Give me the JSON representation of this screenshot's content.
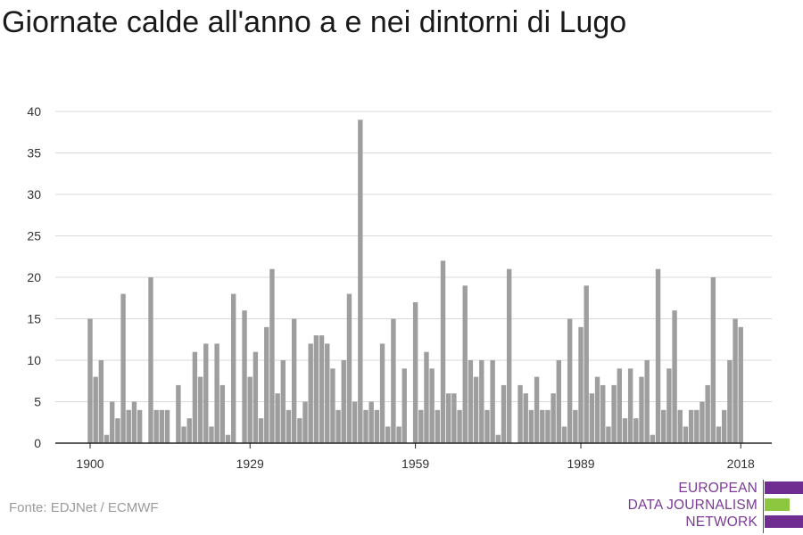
{
  "title": "Giornate calde all'anno a e nei dintorni di Lugo",
  "source": "Fonte: EDJNet / ECMWF",
  "logo": {
    "lines": [
      "EUROPEAN",
      "DATA JOURNALISM",
      "NETWORK"
    ],
    "colors": {
      "purple": "#6f2c91",
      "green": "#8dc63f"
    }
  },
  "chart_data": {
    "type": "bar",
    "x": [
      1900,
      1901,
      1902,
      1903,
      1904,
      1905,
      1906,
      1907,
      1908,
      1909,
      1910,
      1911,
      1912,
      1913,
      1914,
      1915,
      1916,
      1917,
      1918,
      1919,
      1920,
      1921,
      1922,
      1923,
      1924,
      1925,
      1926,
      1927,
      1928,
      1929,
      1930,
      1931,
      1932,
      1933,
      1934,
      1935,
      1936,
      1937,
      1938,
      1939,
      1940,
      1941,
      1942,
      1943,
      1944,
      1945,
      1946,
      1947,
      1948,
      1949,
      1950,
      1951,
      1952,
      1953,
      1954,
      1955,
      1956,
      1957,
      1958,
      1959,
      1960,
      1961,
      1962,
      1963,
      1964,
      1965,
      1966,
      1967,
      1968,
      1969,
      1970,
      1971,
      1972,
      1973,
      1974,
      1975,
      1976,
      1977,
      1978,
      1979,
      1980,
      1981,
      1982,
      1983,
      1984,
      1985,
      1986,
      1987,
      1988,
      1989,
      1990,
      1991,
      1992,
      1993,
      1994,
      1995,
      1996,
      1997,
      1998,
      1999,
      2000,
      2001,
      2002,
      2003,
      2004,
      2005,
      2006,
      2007,
      2008,
      2009,
      2010,
      2011,
      2012,
      2013,
      2014,
      2015,
      2016,
      2017,
      2018
    ],
    "values": [
      15,
      8,
      10,
      1,
      5,
      3,
      18,
      4,
      5,
      4,
      0,
      20,
      4,
      4,
      4,
      0,
      7,
      2,
      3,
      11,
      8,
      12,
      2,
      12,
      7,
      1,
      18,
      0,
      16,
      8,
      11,
      3,
      14,
      21,
      6,
      10,
      4,
      15,
      3,
      5,
      12,
      13,
      13,
      12,
      9,
      4,
      10,
      18,
      5,
      39,
      4,
      5,
      4,
      12,
      2,
      15,
      2,
      9,
      0,
      17,
      4,
      11,
      9,
      4,
      22,
      6,
      6,
      4,
      19,
      10,
      8,
      10,
      4,
      10,
      1,
      7,
      21,
      0,
      7,
      6,
      4,
      8,
      4,
      4,
      6,
      10,
      2,
      15,
      4,
      14,
      19,
      6,
      8,
      7,
      2,
      7,
      9,
      3,
      9,
      3,
      8,
      10,
      1,
      21,
      4,
      9,
      16,
      4,
      2,
      4,
      4,
      5,
      7,
      20,
      2,
      4,
      10,
      15,
      14
    ],
    "xticks": [
      1900,
      1929,
      1959,
      1989,
      2018
    ],
    "yticks": [
      0,
      5,
      10,
      15,
      20,
      25,
      30,
      35,
      40
    ],
    "ylim": [
      0,
      40
    ],
    "bar_color": "#9e9e9e",
    "grid": true
  }
}
